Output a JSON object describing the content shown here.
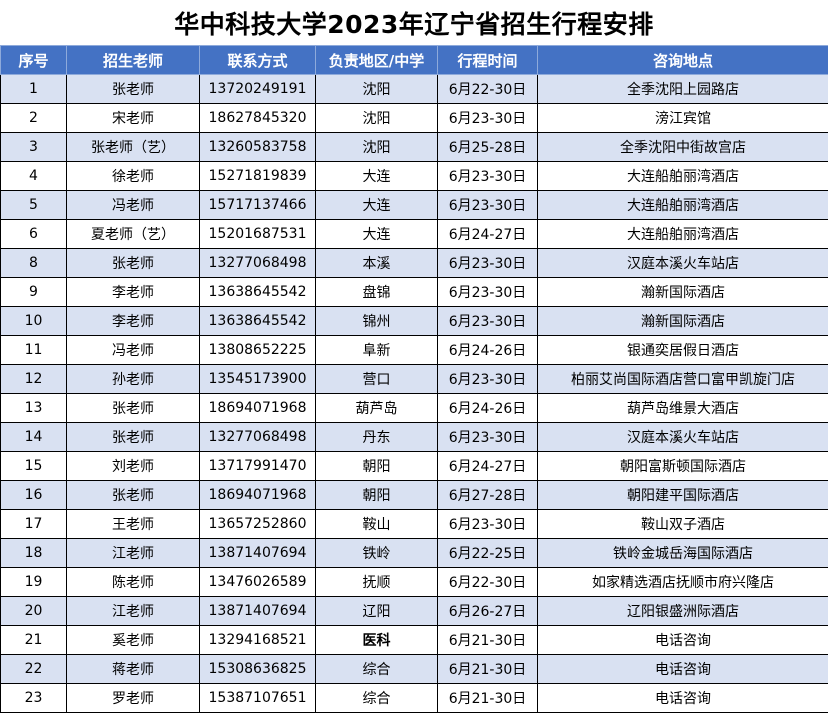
{
  "title": "华中科技大学2023年辽宁省招生行程安排",
  "table": {
    "headers": [
      "序号",
      "招生老师",
      "联系方式",
      "负责地区/中学",
      "行程时间",
      "咨询地点"
    ],
    "rows": [
      [
        "1",
        "张老师",
        "13720249191",
        "沈阳",
        "6月22-30日",
        "全季沈阳上园路店"
      ],
      [
        "2",
        "宋老师",
        "18627845320",
        "沈阳",
        "6月23-30日",
        "滂江宾馆"
      ],
      [
        "3",
        "张老师（艺）",
        "13260583758",
        "沈阳",
        "6月25-28日",
        "全季沈阳中街故宫店"
      ],
      [
        "4",
        "徐老师",
        "15271819839",
        "大连",
        "6月23-30日",
        "大连船舶丽湾酒店"
      ],
      [
        "5",
        "冯老师",
        "15717137466",
        "大连",
        "6月23-30日",
        "大连船舶丽湾酒店"
      ],
      [
        "6",
        "夏老师（艺）",
        "15201687531",
        "大连",
        "6月24-27日",
        "大连船舶丽湾酒店"
      ],
      [
        "8",
        "张老师",
        "13277068498",
        "本溪",
        "6月23-30日",
        "汉庭本溪火车站店"
      ],
      [
        "9",
        "李老师",
        "13638645542",
        "盘锦",
        "6月23-30日",
        "瀚新国际酒店"
      ],
      [
        "10",
        "李老师",
        "13638645542",
        "锦州",
        "6月23-30日",
        "瀚新国际酒店"
      ],
      [
        "11",
        "冯老师",
        "13808652225",
        "阜新",
        "6月24-26日",
        "银通奕居假日酒店"
      ],
      [
        "12",
        "孙老师",
        "13545173900",
        "营口",
        "6月23-30日",
        "柏丽艾尚国际酒店营口富甲凯旋门店"
      ],
      [
        "13",
        "张老师",
        "18694071968",
        "葫芦岛",
        "6月24-26日",
        "葫芦岛维景大酒店"
      ],
      [
        "14",
        "张老师",
        "13277068498",
        "丹东",
        "6月23-30日",
        "汉庭本溪火车站店"
      ],
      [
        "15",
        "刘老师",
        "13717991470",
        "朝阳",
        "6月24-27日",
        "朝阳富斯顿国际酒店"
      ],
      [
        "16",
        "张老师",
        "18694071968",
        "朝阳",
        "6月27-28日",
        "朝阳建平国际酒店"
      ],
      [
        "17",
        "王老师",
        "13657252860",
        "鞍山",
        "6月23-30日",
        "鞍山双子酒店"
      ],
      [
        "18",
        "江老师",
        "13871407694",
        "铁岭",
        "6月22-25日",
        "铁岭金城岳海国际酒店"
      ],
      [
        "19",
        "陈老师",
        "13476026589",
        "抚顺",
        "6月22-30日",
        "如家精选酒店抚顺市府兴隆店"
      ],
      [
        "20",
        "江老师",
        "13871407694",
        "辽阳",
        "6月26-27日",
        "辽阳银盛洲际酒店"
      ],
      [
        "21",
        "奚老师",
        "13294168521",
        "医科",
        "6月21-30日",
        "电话咨询"
      ],
      [
        "22",
        "蒋老师",
        "15308636825",
        "综合",
        "6月21-30日",
        "电话咨询"
      ],
      [
        "23",
        "罗老师",
        "15387107651",
        "综合",
        "6月21-30日",
        "电话咨询"
      ]
    ],
    "bold_cells": [
      [
        19,
        3
      ]
    ]
  },
  "colors": {
    "header_bg": "#4472c4",
    "header_text": "#ffffff",
    "band_row_bg": "#d9e1f2",
    "plain_row_bg": "#ffffff"
  }
}
